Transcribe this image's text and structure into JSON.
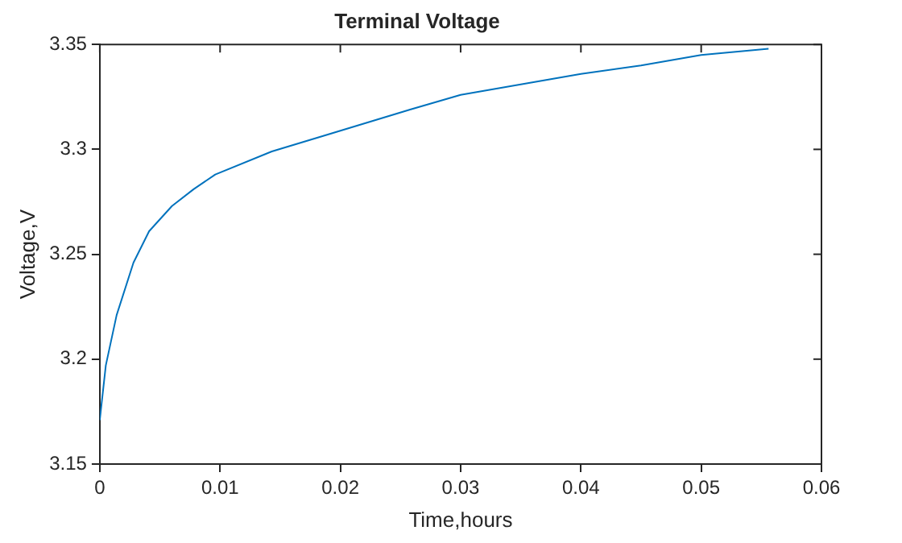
{
  "chart_data": {
    "type": "line",
    "title": "Terminal Voltage",
    "xlabel": "Time,hours",
    "ylabel": "Voltage,V",
    "x": [
      0,
      0.0005,
      0.0014,
      0.0028,
      0.0041,
      0.006,
      0.0078,
      0.0096,
      0.0143,
      0.0189,
      0.0258,
      0.03,
      0.035,
      0.04,
      0.045,
      0.05,
      0.0556
    ],
    "series": [
      {
        "color": "#0072bd",
        "values": [
          3.171,
          3.197,
          3.221,
          3.246,
          3.261,
          3.273,
          3.281,
          3.288,
          3.299,
          3.307,
          3.319,
          3.326,
          3.331,
          3.336,
          3.34,
          3.345,
          3.348
        ]
      }
    ],
    "xlim": [
      0,
      0.06
    ],
    "xticks": [
      0,
      0.01,
      0.02,
      0.03,
      0.04,
      0.05,
      0.06
    ],
    "ylim": [
      3.15,
      3.35
    ],
    "yticks": [
      3.15,
      3.2,
      3.25,
      3.3,
      3.35
    ],
    "grid": false,
    "legend": false,
    "marker": "none",
    "line_style": "solid"
  }
}
